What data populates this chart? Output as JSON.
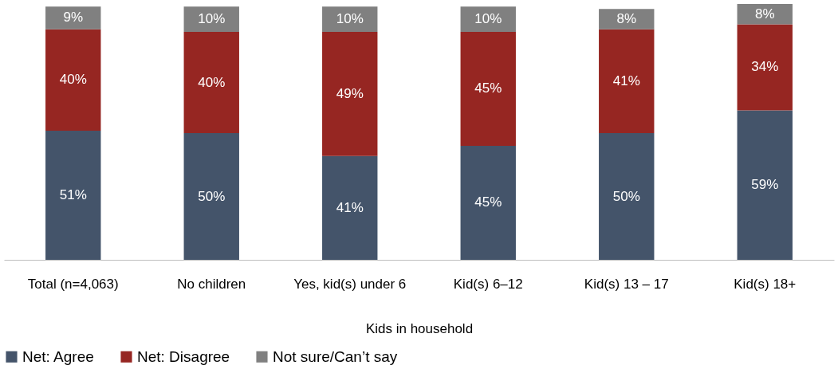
{
  "chart_data": {
    "type": "bar",
    "stacked": true,
    "tick_labels": "x",
    "legend": "bottom",
    "xlabel": "Kids in household",
    "categories": [
      "Total (n=4,063)",
      "No children",
      "Yes, kid(s) under 6",
      "Kid(s) 6–12",
      "Kid(s) 13 – 17",
      "Kid(s) 18+"
    ],
    "series": [
      {
        "name": "Net: Agree",
        "color": "#44546a",
        "values": [
          51,
          50,
          41,
          45,
          50,
          59
        ],
        "value_labels": [
          "51%",
          "50%",
          "41%",
          "45%",
          "50%",
          "59%"
        ]
      },
      {
        "name": "Net: Disagree",
        "color": "#962622",
        "values": [
          40,
          40,
          49,
          45,
          41,
          34
        ],
        "value_labels": [
          "40%",
          "40%",
          "49%",
          "45%",
          "41%",
          "34%"
        ]
      },
      {
        "name": "Not sure/Can’t say",
        "color": "#808080",
        "values": [
          9,
          10,
          10,
          10,
          8,
          8
        ],
        "value_labels": [
          "9%",
          "10%",
          "10%",
          "10%",
          "8%",
          "8%"
        ]
      }
    ]
  }
}
